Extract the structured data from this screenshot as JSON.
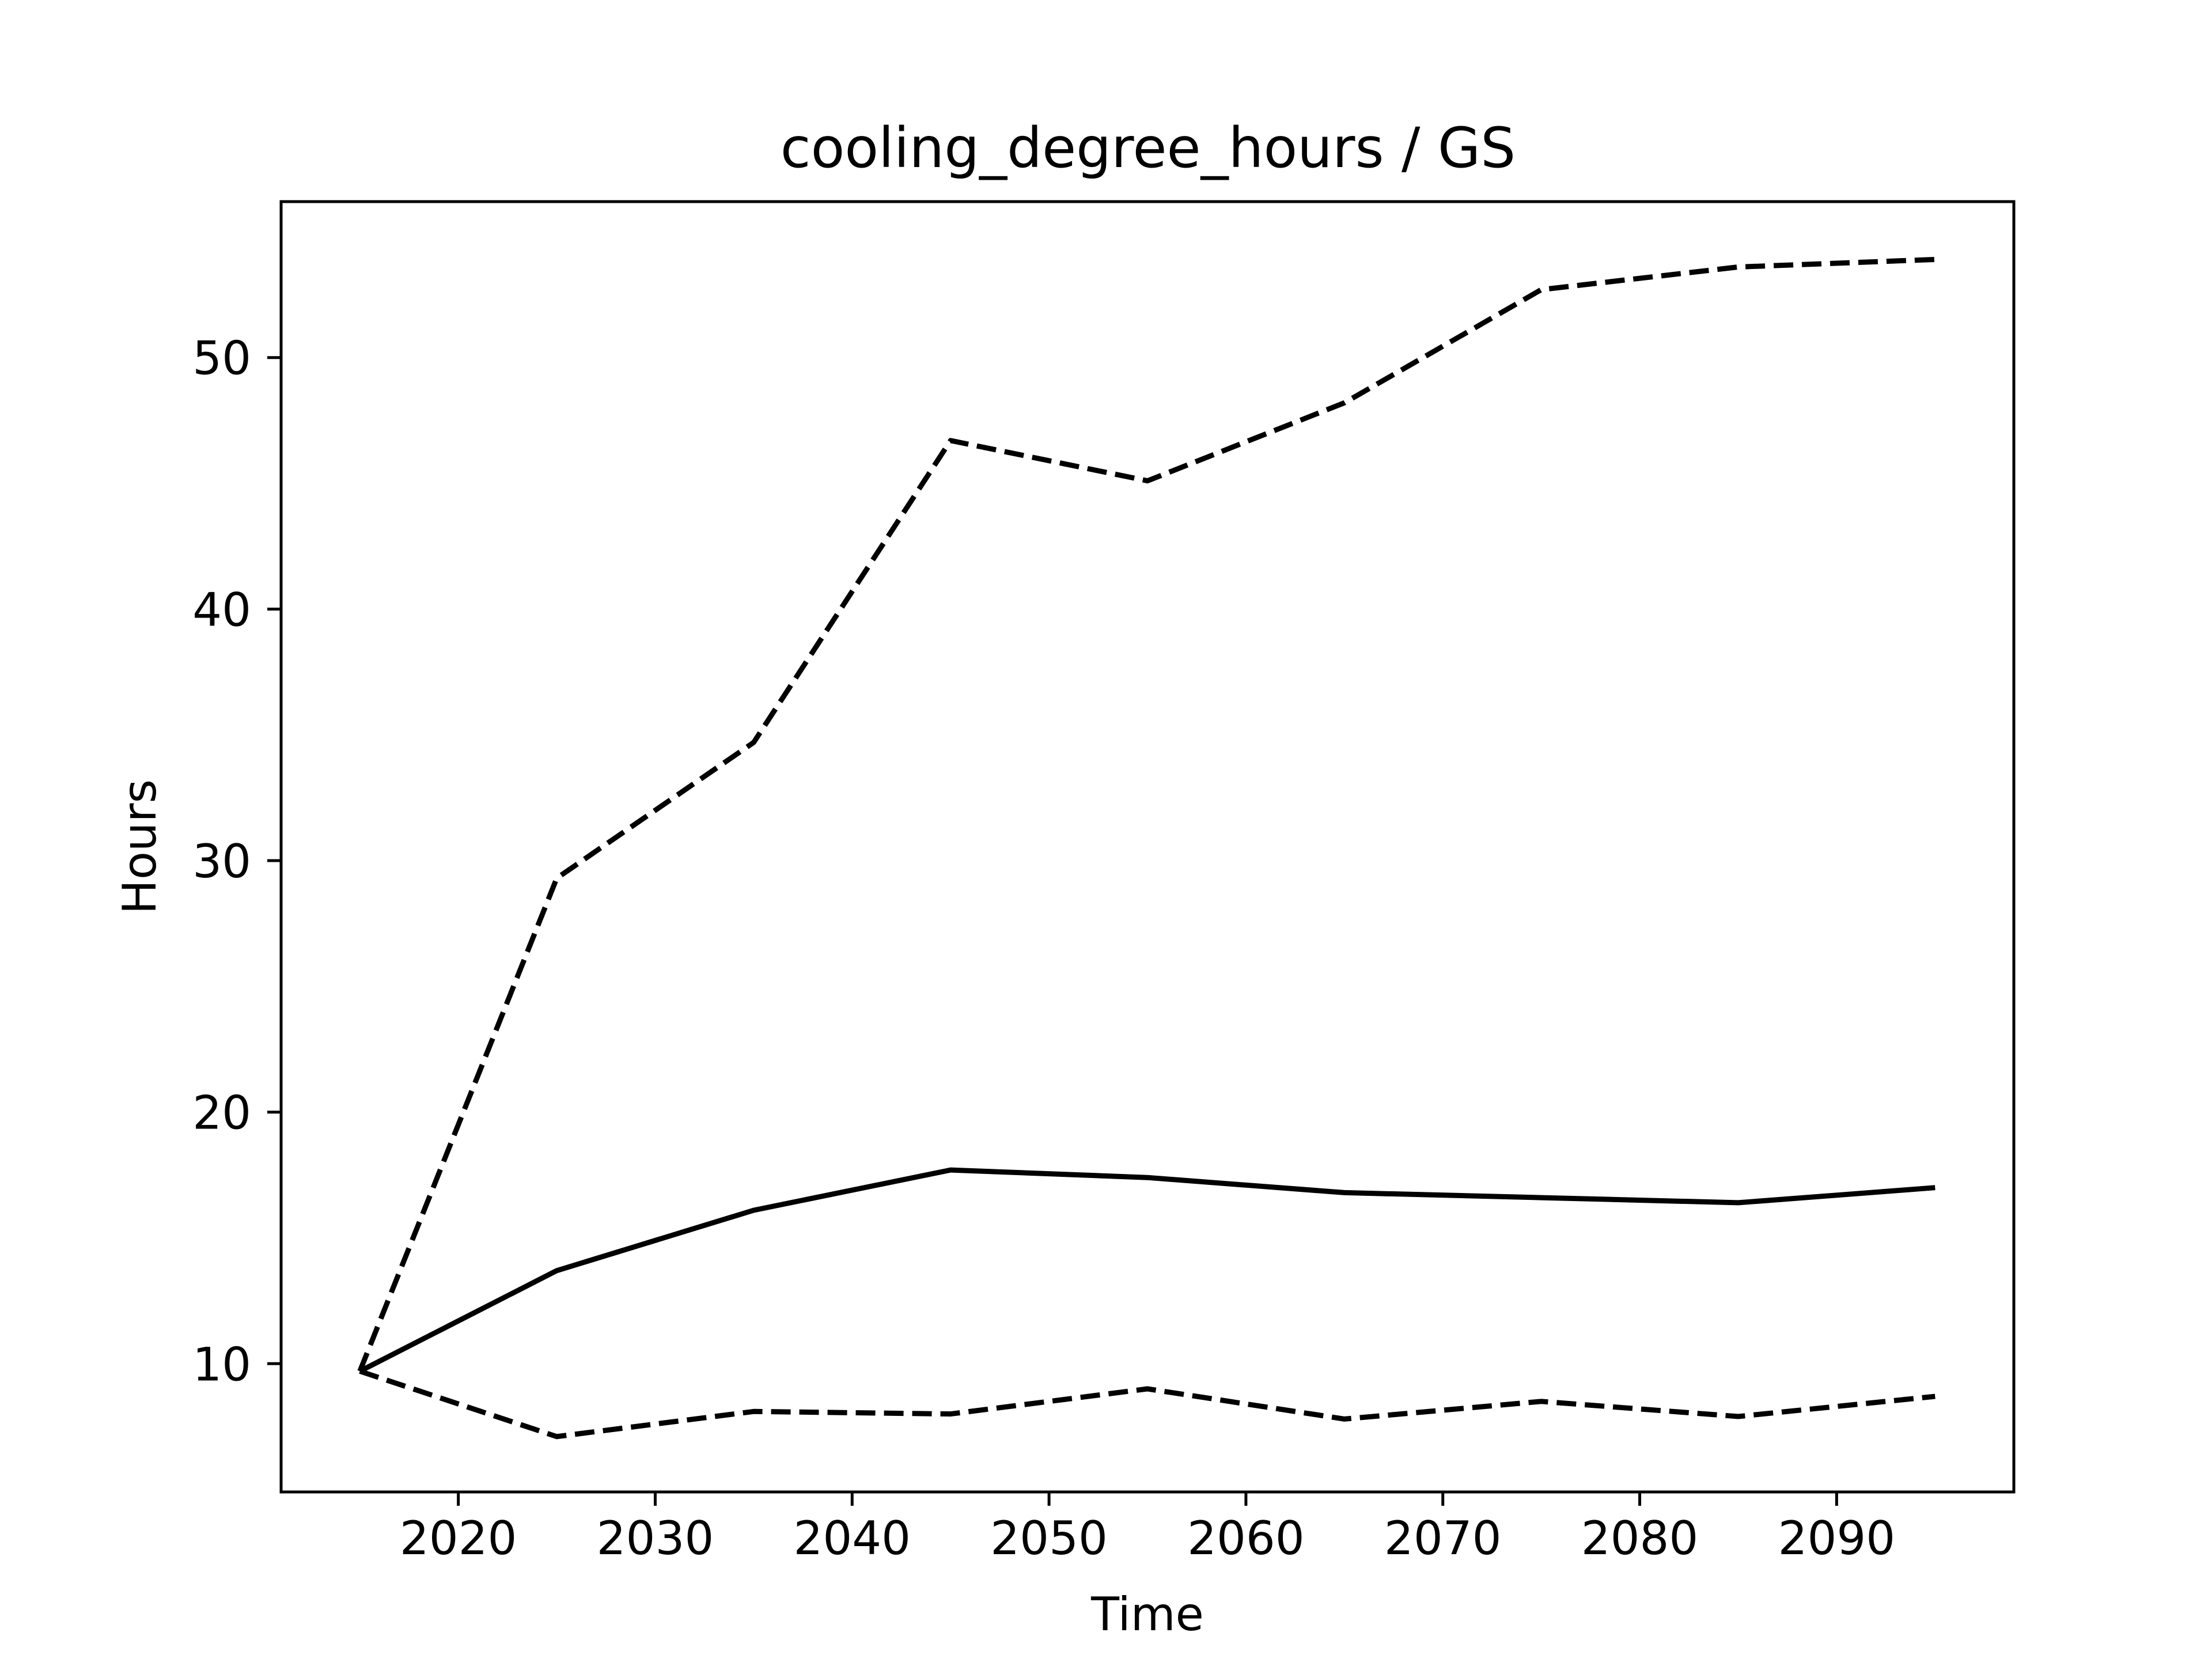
{
  "chart_data": {
    "type": "line",
    "title": "cooling_degree_hours / GS",
    "xlabel": "Time",
    "ylabel": "Hours",
    "x": [
      2015,
      2025,
      2035,
      2045,
      2055,
      2065,
      2075,
      2085,
      2095
    ],
    "xlim": [
      2011,
      2099
    ],
    "ylim": [
      4.9,
      56.2
    ],
    "xticks": [
      2020,
      2030,
      2040,
      2050,
      2060,
      2070,
      2080,
      2090
    ],
    "yticks": [
      10,
      20,
      30,
      40,
      50
    ],
    "grid": false,
    "legend": "none",
    "series": [
      {
        "style": "solid",
        "color": "#000000",
        "values": [
          9.7,
          13.7,
          16.1,
          17.7,
          17.4,
          16.8,
          16.6,
          16.4,
          17.0
        ]
      },
      {
        "style": "dashed",
        "color": "#000000",
        "values": [
          9.7,
          29.3,
          34.7,
          46.7,
          45.1,
          48.2,
          52.7,
          53.6,
          53.9
        ]
      },
      {
        "style": "dashed",
        "color": "#000000",
        "values": [
          9.7,
          7.1,
          8.1,
          8.0,
          9.0,
          7.8,
          8.5,
          7.9,
          8.7
        ]
      }
    ]
  }
}
